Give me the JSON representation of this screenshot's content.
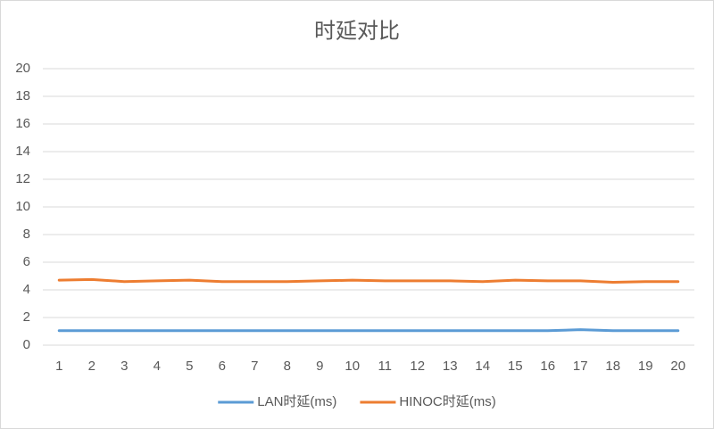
{
  "chart_data": {
    "type": "line",
    "title": "时延对比",
    "categories": [
      "1",
      "2",
      "3",
      "4",
      "5",
      "6",
      "7",
      "8",
      "9",
      "10",
      "11",
      "12",
      "13",
      "14",
      "15",
      "16",
      "17",
      "18",
      "19",
      "20"
    ],
    "series": [
      {
        "name": "LAN时延(ms)",
        "color": "#5b9bd5",
        "values": [
          1.05,
          1.05,
          1.05,
          1.05,
          1.05,
          1.05,
          1.05,
          1.05,
          1.05,
          1.05,
          1.05,
          1.05,
          1.05,
          1.05,
          1.05,
          1.05,
          1.12,
          1.05,
          1.05,
          1.05
        ]
      },
      {
        "name": "HINOC时延(ms)",
        "color": "#ed7d31",
        "values": [
          4.7,
          4.75,
          4.6,
          4.65,
          4.7,
          4.6,
          4.6,
          4.6,
          4.65,
          4.7,
          4.65,
          4.65,
          4.65,
          4.6,
          4.7,
          4.65,
          4.65,
          4.55,
          4.6,
          4.6
        ]
      }
    ],
    "ylim": [
      0,
      20
    ],
    "yticks": [
      0,
      2,
      4,
      6,
      8,
      10,
      12,
      14,
      16,
      18,
      20
    ],
    "grid": true,
    "legend": "bottom"
  }
}
